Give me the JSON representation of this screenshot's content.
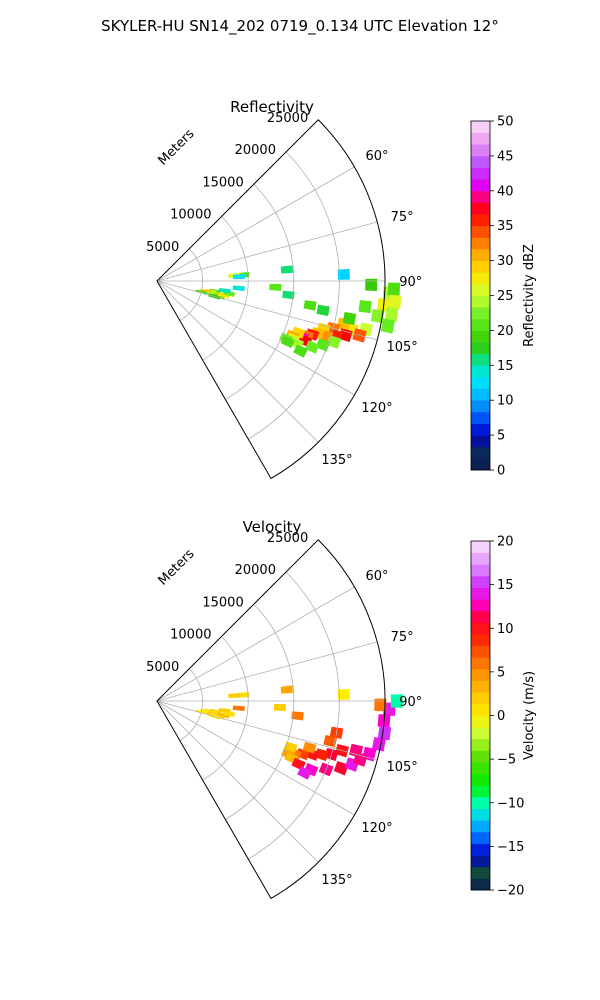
{
  "suptitle": "SKYLER-HU  SN14_202  0719_0.134 UTC Elevation 12°",
  "chart_data": [
    {
      "type": "heatmap",
      "title": "Reflectivity",
      "projection": "polar-sector",
      "azimuth_range_deg": [
        45,
        150
      ],
      "range_max_m": 25000,
      "range_label": "Meters",
      "range_ticks": [
        5000,
        10000,
        15000,
        20000,
        25000
      ],
      "range_tick_labels": [
        "5000",
        "10000",
        "15000",
        "20000",
        "25000"
      ],
      "azimuth_ticks_deg": [
        60,
        75,
        90,
        105,
        120,
        135
      ],
      "azimuth_tick_labels": [
        "60°",
        "75°",
        "90°",
        "105°",
        "120°",
        "135°"
      ],
      "grid": true,
      "colorbar": {
        "label": "Reflectivity dBZ",
        "min": 0,
        "max": 50,
        "ticks": [
          0,
          5,
          10,
          15,
          20,
          25,
          30,
          35,
          40,
          45,
          50
        ],
        "tick_labels": [
          "0",
          "5",
          "10",
          "15",
          "20",
          "25",
          "30",
          "35",
          "40",
          "45",
          "50"
        ],
        "colormap": "pyart_NWSRef",
        "stops": [
          {
            "v": 0,
            "c": "#0b1b4f"
          },
          {
            "v": 3,
            "c": "#0a2a5e"
          },
          {
            "v": 5,
            "c": "#0000cc"
          },
          {
            "v": 8,
            "c": "#0066ff"
          },
          {
            "v": 10,
            "c": "#00aaff"
          },
          {
            "v": 13,
            "c": "#00e6ff"
          },
          {
            "v": 15,
            "c": "#00e6b3"
          },
          {
            "v": 18,
            "c": "#33cc00"
          },
          {
            "v": 22,
            "c": "#66ee22"
          },
          {
            "v": 25,
            "c": "#ccff33"
          },
          {
            "v": 28,
            "c": "#ffe600"
          },
          {
            "v": 31,
            "c": "#ffaa00"
          },
          {
            "v": 34,
            "c": "#ff5500"
          },
          {
            "v": 37,
            "c": "#ff0000"
          },
          {
            "v": 39,
            "c": "#ff0077"
          },
          {
            "v": 41,
            "c": "#dd00ff"
          },
          {
            "v": 44,
            "c": "#bb55ff"
          },
          {
            "v": 47,
            "c": "#ee99ee"
          },
          {
            "v": 50,
            "c": "#fbe6fb"
          }
        ]
      },
      "cells": [
        {
          "az": 93,
          "r": 25500,
          "v": 24
        },
        {
          "az": 96,
          "r": 25000,
          "v": 27
        },
        {
          "az": 99,
          "r": 24500,
          "v": 23
        },
        {
          "az": 92,
          "r": 26000,
          "v": 20
        },
        {
          "az": 95,
          "r": 26200,
          "v": 26
        },
        {
          "az": 98,
          "r": 26000,
          "v": 24
        },
        {
          "az": 101,
          "r": 25800,
          "v": 22
        },
        {
          "az": 91,
          "r": 23500,
          "v": 18
        },
        {
          "az": 97,
          "r": 23000,
          "v": 21
        },
        {
          "az": 103,
          "r": 23500,
          "v": 25
        },
        {
          "az": 104,
          "r": 22000,
          "v": 28
        },
        {
          "az": 105,
          "r": 23000,
          "v": 34
        },
        {
          "az": 103,
          "r": 21000,
          "v": 30
        },
        {
          "az": 106,
          "r": 21500,
          "v": 37
        },
        {
          "az": 105,
          "r": 20000,
          "v": 33
        },
        {
          "az": 107,
          "r": 20500,
          "v": 36
        },
        {
          "az": 106,
          "r": 19000,
          "v": 29
        },
        {
          "az": 108,
          "r": 19500,
          "v": 32
        },
        {
          "az": 108,
          "r": 18500,
          "v": 30
        },
        {
          "az": 109,
          "r": 18000,
          "v": 36
        },
        {
          "az": 110,
          "r": 17500,
          "v": 33
        },
        {
          "az": 111,
          "r": 17000,
          "v": 40
        },
        {
          "az": 112,
          "r": 17500,
          "v": 37
        },
        {
          "az": 110,
          "r": 16500,
          "v": 29
        },
        {
          "az": 112,
          "r": 16000,
          "v": 31
        },
        {
          "az": 113,
          "r": 16200,
          "v": 26
        },
        {
          "az": 114,
          "r": 16800,
          "v": 24
        },
        {
          "az": 114,
          "r": 15500,
          "v": 22
        },
        {
          "az": 115,
          "r": 15800,
          "v": 20
        },
        {
          "az": 109,
          "r": 20500,
          "v": 23
        },
        {
          "az": 111,
          "r": 19500,
          "v": 21
        },
        {
          "az": 113,
          "r": 18500,
          "v": 22
        },
        {
          "az": 116,
          "r": 17500,
          "v": 20
        },
        {
          "az": 101,
          "r": 21500,
          "v": 19
        },
        {
          "az": 100,
          "r": 18500,
          "v": 17
        },
        {
          "az": 99,
          "r": 17000,
          "v": 20
        },
        {
          "az": 96,
          "r": 14500,
          "v": 16
        },
        {
          "az": 93,
          "r": 13000,
          "v": 21
        },
        {
          "az": 86,
          "r": 9500,
          "v": 20
        },
        {
          "az": 86,
          "r": 8500,
          "v": 26
        },
        {
          "az": 87,
          "r": 9000,
          "v": 13
        },
        {
          "az": 85,
          "r": 14300,
          "v": 16
        },
        {
          "az": 95,
          "r": 9000,
          "v": 14
        },
        {
          "az": 88,
          "r": 20500,
          "v": 12
        },
        {
          "az": 100,
          "r": 6500,
          "v": 20
        },
        {
          "az": 101,
          "r": 6000,
          "v": 27
        },
        {
          "az": 102,
          "r": 5500,
          "v": 31
        },
        {
          "az": 103,
          "r": 6200,
          "v": 24
        },
        {
          "az": 104,
          "r": 7000,
          "v": 21
        },
        {
          "az": 105,
          "r": 6500,
          "v": 18
        },
        {
          "az": 102,
          "r": 7500,
          "v": 28
        },
        {
          "az": 100,
          "r": 8000,
          "v": 22
        },
        {
          "az": 98,
          "r": 7500,
          "v": 15
        },
        {
          "az": 104,
          "r": 5000,
          "v": 20
        }
      ]
    },
    {
      "type": "heatmap",
      "title": "Velocity",
      "projection": "polar-sector",
      "azimuth_range_deg": [
        45,
        150
      ],
      "range_max_m": 25000,
      "range_label": "Meters",
      "range_ticks": [
        5000,
        10000,
        15000,
        20000,
        25000
      ],
      "range_tick_labels": [
        "5000",
        "10000",
        "15000",
        "20000",
        "25000"
      ],
      "azimuth_ticks_deg": [
        60,
        75,
        90,
        105,
        120,
        135
      ],
      "azimuth_tick_labels": [
        "60°",
        "75°",
        "90°",
        "105°",
        "120°",
        "135°"
      ],
      "grid": true,
      "colorbar": {
        "label": "Velocity (m/s)",
        "min": -20,
        "max": 20,
        "ticks": [
          -20,
          -15,
          -10,
          -5,
          0,
          5,
          10,
          15,
          20
        ],
        "tick_labels": [
          "−20",
          "−15",
          "−10",
          "−5",
          "0",
          "5",
          "10",
          "15",
          "20"
        ],
        "colormap": "pyart_BuDRd18",
        "stops": [
          {
            "v": -20,
            "c": "#0b1b4f"
          },
          {
            "v": -18,
            "c": "#0f4a3a"
          },
          {
            "v": -16,
            "c": "#0000cc"
          },
          {
            "v": -14,
            "c": "#0066ff"
          },
          {
            "v": -12,
            "c": "#00ccff"
          },
          {
            "v": -10,
            "c": "#00ffaa"
          },
          {
            "v": -8,
            "c": "#00ee00"
          },
          {
            "v": -5,
            "c": "#55dd00"
          },
          {
            "v": -2,
            "c": "#ccff33"
          },
          {
            "v": 0,
            "c": "#ffee00"
          },
          {
            "v": 3,
            "c": "#ffbb00"
          },
          {
            "v": 6,
            "c": "#ff7700"
          },
          {
            "v": 9,
            "c": "#ff2200"
          },
          {
            "v": 11,
            "c": "#ff0033"
          },
          {
            "v": 13,
            "c": "#ff00cc"
          },
          {
            "v": 15,
            "c": "#cc33ff"
          },
          {
            "v": 17,
            "c": "#dd88ff"
          },
          {
            "v": 20,
            "c": "#fbe6fb"
          }
        ]
      },
      "cells": [
        {
          "az": 92,
          "r": 25500,
          "v": 14
        },
        {
          "az": 95,
          "r": 25000,
          "v": 13
        },
        {
          "az": 98,
          "r": 25200,
          "v": 15
        },
        {
          "az": 101,
          "r": 24800,
          "v": 14
        },
        {
          "az": 104,
          "r": 24000,
          "v": 13
        },
        {
          "az": 90,
          "r": 26300,
          "v": -10
        },
        {
          "az": 91,
          "r": 24500,
          "v": 6
        },
        {
          "az": 104,
          "r": 22500,
          "v": 12
        },
        {
          "az": 105,
          "r": 21000,
          "v": 10
        },
        {
          "az": 107,
          "r": 20000,
          "v": 11
        },
        {
          "az": 108,
          "r": 19000,
          "v": 9
        },
        {
          "az": 109,
          "r": 18000,
          "v": 10
        },
        {
          "az": 110,
          "r": 17000,
          "v": 8
        },
        {
          "az": 111,
          "r": 16200,
          "v": 6
        },
        {
          "az": 112,
          "r": 15500,
          "v": 4
        },
        {
          "az": 113,
          "r": 16000,
          "v": 3
        },
        {
          "az": 114,
          "r": 17000,
          "v": 10
        },
        {
          "az": 114,
          "r": 18500,
          "v": 13
        },
        {
          "az": 112,
          "r": 20000,
          "v": 12
        },
        {
          "az": 110,
          "r": 21500,
          "v": 11
        },
        {
          "az": 108,
          "r": 22500,
          "v": 14
        },
        {
          "az": 106,
          "r": 23200,
          "v": 12
        },
        {
          "az": 103,
          "r": 19500,
          "v": 7
        },
        {
          "az": 107,
          "r": 17500,
          "v": 5
        },
        {
          "az": 109,
          "r": 15500,
          "v": 2
        },
        {
          "az": 116,
          "r": 18000,
          "v": 14
        },
        {
          "az": 100,
          "r": 20000,
          "v": 8
        },
        {
          "az": 96,
          "r": 15500,
          "v": 6
        },
        {
          "az": 93,
          "r": 13500,
          "v": 2
        },
        {
          "az": 86,
          "r": 9500,
          "v": 1
        },
        {
          "az": 86,
          "r": 8500,
          "v": 2
        },
        {
          "az": 85,
          "r": 14300,
          "v": 4
        },
        {
          "az": 95,
          "r": 9000,
          "v": 6
        },
        {
          "az": 88,
          "r": 20500,
          "v": 0
        },
        {
          "az": 100,
          "r": 6500,
          "v": 1
        },
        {
          "az": 101,
          "r": 5800,
          "v": 2
        },
        {
          "az": 102,
          "r": 5500,
          "v": 0
        },
        {
          "az": 103,
          "r": 6300,
          "v": 2
        },
        {
          "az": 104,
          "r": 7000,
          "v": 1
        },
        {
          "az": 105,
          "r": 6500,
          "v": 0
        },
        {
          "az": 102,
          "r": 7500,
          "v": 3
        },
        {
          "az": 100,
          "r": 8000,
          "v": 1
        },
        {
          "az": 98,
          "r": 7500,
          "v": 2
        },
        {
          "az": 104,
          "r": 5000,
          "v": 0
        }
      ]
    }
  ]
}
